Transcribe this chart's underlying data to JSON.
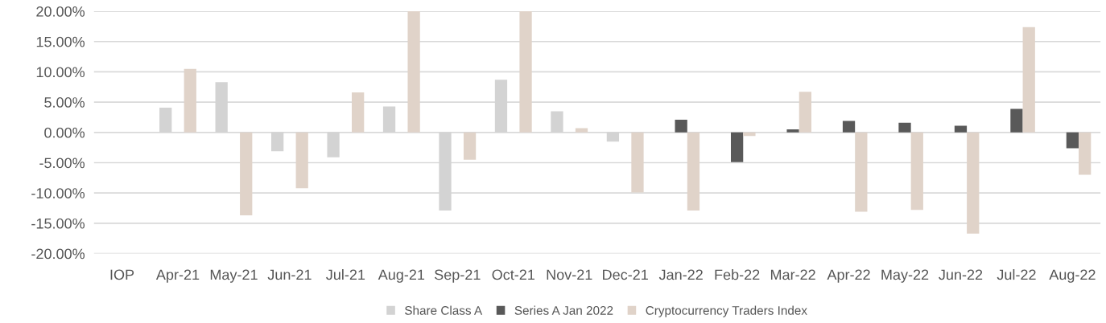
{
  "chart_data": {
    "type": "bar",
    "categories": [
      "IOP",
      "Apr-21",
      "May-21",
      "Jun-21",
      "Jul-21",
      "Aug-21",
      "Sep-21",
      "Oct-21",
      "Nov-21",
      "Dec-21",
      "Jan-22",
      "Feb-22",
      "Mar-22",
      "Apr-22",
      "May-22",
      "Jun-22",
      "Jul-22",
      "Aug-22"
    ],
    "series": [
      {
        "name": "Share Class A",
        "color": "#d3d3d3",
        "values": [
          null,
          4.1,
          8.3,
          -3.1,
          -4.1,
          4.3,
          -12.9,
          8.7,
          3.5,
          -1.5,
          null,
          null,
          null,
          null,
          null,
          null,
          null,
          null
        ]
      },
      {
        "name": "Series A Jan 2022",
        "color": "#595959",
        "values": [
          null,
          null,
          null,
          null,
          null,
          null,
          null,
          null,
          null,
          null,
          2.1,
          -4.9,
          0.5,
          1.9,
          1.6,
          1.1,
          3.9,
          -2.6
        ]
      },
      {
        "name": "Cryptocurrency Traders Index",
        "color": "#e0d3c9",
        "values": [
          null,
          10.5,
          -13.7,
          -9.2,
          6.6,
          20,
          -4.5,
          20,
          0.7,
          -9.9,
          -12.9,
          -0.6,
          6.7,
          -13.1,
          -12.8,
          -16.7,
          17.4,
          -7.0
        ]
      }
    ],
    "ylim": [
      -20,
      20
    ],
    "yticks": [
      {
        "value": -20,
        "label": "-20.00%"
      },
      {
        "value": -15,
        "label": "-15.00%"
      },
      {
        "value": -10,
        "label": "-10.00%"
      },
      {
        "value": -5,
        "label": "-5.00%"
      },
      {
        "value": 0,
        "label": "0.00%"
      },
      {
        "value": 5,
        "label": "5.00%"
      },
      {
        "value": 10,
        "label": "10.00%"
      },
      {
        "value": 15,
        "label": "15.00%"
      },
      {
        "value": 20,
        "label": "20.00%"
      }
    ],
    "grid": "y",
    "legend": "bottom"
  }
}
